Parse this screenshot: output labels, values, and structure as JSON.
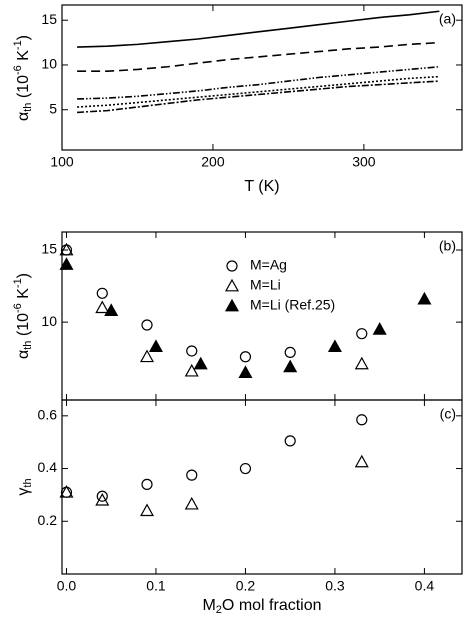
{
  "chart_data": [
    {
      "type": "line",
      "panel_label": "(a)",
      "xlabel": "T (K)",
      "ylabel": [
        "α",
        "th",
        " (10",
        "-6",
        " K",
        "-1",
        ")"
      ],
      "xlim": [
        100,
        365
      ],
      "xticks": [
        100,
        200,
        300
      ],
      "ylim": [
        0.5,
        16.7
      ],
      "yticks": [
        5,
        10,
        15
      ],
      "x": [
        110,
        130,
        150,
        170,
        190,
        210,
        230,
        250,
        270,
        290,
        310,
        330,
        350
      ],
      "series": [
        {
          "color": "#000000",
          "dash": "none",
          "values": [
            12.0,
            12.1,
            12.3,
            12.6,
            12.9,
            13.3,
            13.7,
            14.1,
            14.5,
            14.9,
            15.3,
            15.6,
            16.0
          ]
        },
        {
          "color": "#000000",
          "dash": "9,5",
          "values": [
            9.3,
            9.3,
            9.5,
            9.8,
            10.2,
            10.6,
            10.9,
            11.2,
            11.5,
            11.8,
            12.0,
            12.3,
            12.5
          ]
        },
        {
          "color": "#000000",
          "dash": "7,2,1.5,2,1.5,2",
          "values": [
            6.2,
            6.3,
            6.5,
            6.8,
            7.1,
            7.5,
            7.8,
            8.2,
            8.6,
            8.9,
            9.2,
            9.5,
            9.8
          ]
        },
        {
          "color": "#000000",
          "dash": "2,2",
          "values": [
            5.3,
            5.5,
            5.8,
            6.1,
            6.4,
            6.7,
            7.0,
            7.3,
            7.6,
            7.9,
            8.2,
            8.5,
            8.7
          ]
        },
        {
          "color": "#000000",
          "dash": "7,2,2,2",
          "values": [
            4.7,
            4.9,
            5.3,
            5.7,
            6.1,
            6.4,
            6.7,
            7.0,
            7.3,
            7.6,
            7.8,
            8.0,
            8.2
          ]
        }
      ]
    },
    {
      "type": "scatter",
      "panel_label": "(b)",
      "ylabel": [
        "α",
        "th",
        " (10",
        "-6",
        " K",
        "-1",
        ")"
      ],
      "xlim": [
        -0.005,
        0.442
      ],
      "ylim": [
        4.6,
        16.25
      ],
      "yticks": [
        10,
        15
      ],
      "series": [
        {
          "name": "M=Ag",
          "marker": "circle",
          "filled": false,
          "color": "#000000",
          "x": [
            0,
            0.04,
            0.09,
            0.14,
            0.2,
            0.25,
            0.33
          ],
          "values": [
            15.0,
            12.0,
            9.8,
            8.0,
            7.6,
            7.9,
            9.2
          ]
        },
        {
          "name": "M=Li",
          "marker": "triangle",
          "filled": false,
          "color": "#000000",
          "x": [
            0,
            0.04,
            0.09,
            0.14,
            0.33
          ],
          "values": [
            15.0,
            11.0,
            7.6,
            6.6,
            7.1
          ]
        },
        {
          "name": "M=Li (Ref.25)",
          "marker": "triangle",
          "filled": true,
          "color": "#000000",
          "x": [
            0,
            0.05,
            0.1,
            0.15,
            0.2,
            0.25,
            0.3,
            0.35,
            0.4
          ],
          "values": [
            14.0,
            10.8,
            8.3,
            7.1,
            6.5,
            6.9,
            8.3,
            9.5,
            11.6
          ]
        }
      ]
    },
    {
      "type": "scatter",
      "panel_label": "(c)",
      "xlabel": [
        "M",
        "2",
        "O mol fraction"
      ],
      "ylabel": [
        "γ",
        "th"
      ],
      "xlim": [
        -0.005,
        0.442
      ],
      "xticks": [
        {
          "value": 0,
          "label": "0.0"
        },
        0.1,
        0.2,
        0.3,
        0.4
      ],
      "ylim": [
        0,
        0.66
      ],
      "yticks": [
        0.2,
        0.4,
        0.6
      ],
      "series": [
        {
          "marker": "circle",
          "filled": false,
          "color": "#000000",
          "x": [
            0,
            0.04,
            0.09,
            0.14,
            0.2,
            0.25,
            0.33
          ],
          "values": [
            0.31,
            0.295,
            0.34,
            0.375,
            0.4,
            0.505,
            0.585
          ]
        },
        {
          "marker": "triangle",
          "filled": false,
          "color": "#000000",
          "x": [
            0,
            0.04,
            0.09,
            0.14,
            0.33
          ],
          "values": [
            0.31,
            0.28,
            0.24,
            0.265,
            0.425
          ]
        }
      ]
    }
  ]
}
